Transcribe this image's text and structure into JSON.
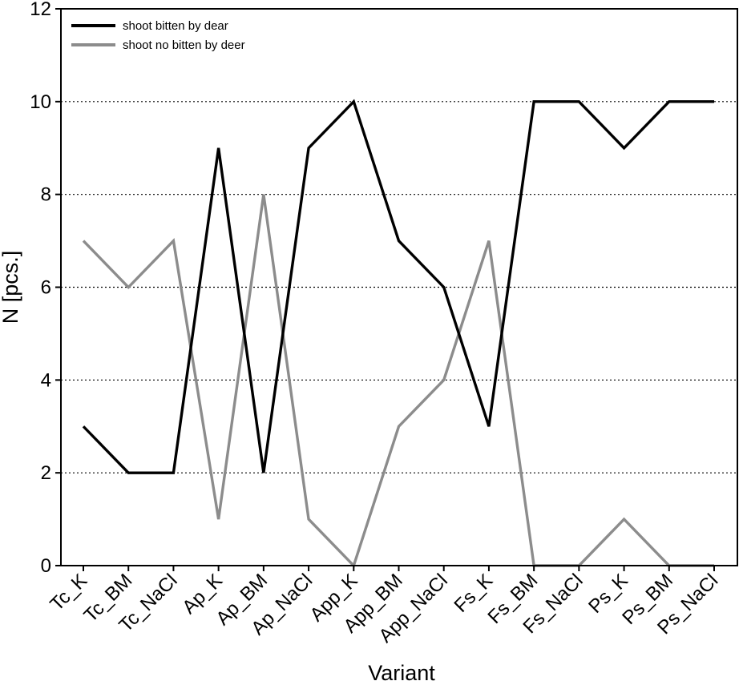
{
  "chart_data": {
    "type": "line",
    "title": "",
    "xlabel": "Variant",
    "ylabel": "N [pcs.]",
    "ylim": [
      0,
      12
    ],
    "yticks": [
      0,
      2,
      4,
      6,
      8,
      10,
      12
    ],
    "grid": "horizontal dotted at 2, 4, 6, 8, 10",
    "legend_position": "top-left",
    "categories": [
      "Tc_K",
      "Tc_BM",
      "Tc_NaCl",
      "Ap_K",
      "Ap_BM",
      "Ap_NaCl",
      "App_K",
      "App_BM",
      "App_NaCl",
      "Fs_K",
      "Fs_BM",
      "Fs_NaCl",
      "Ps_K",
      "Ps_BM",
      "Ps_NaCl"
    ],
    "series": [
      {
        "name": "shoot bitten by dear",
        "color": "#000000",
        "values": [
          3,
          2,
          2,
          9,
          2,
          9,
          10,
          7,
          6,
          3,
          10,
          10,
          9,
          10,
          10
        ]
      },
      {
        "name": "shoot no bitten by deer",
        "color": "#8c8c8c",
        "values": [
          7,
          6,
          7,
          1,
          8,
          1,
          0,
          3,
          4,
          7,
          0,
          0,
          1,
          0,
          0
        ]
      }
    ]
  }
}
